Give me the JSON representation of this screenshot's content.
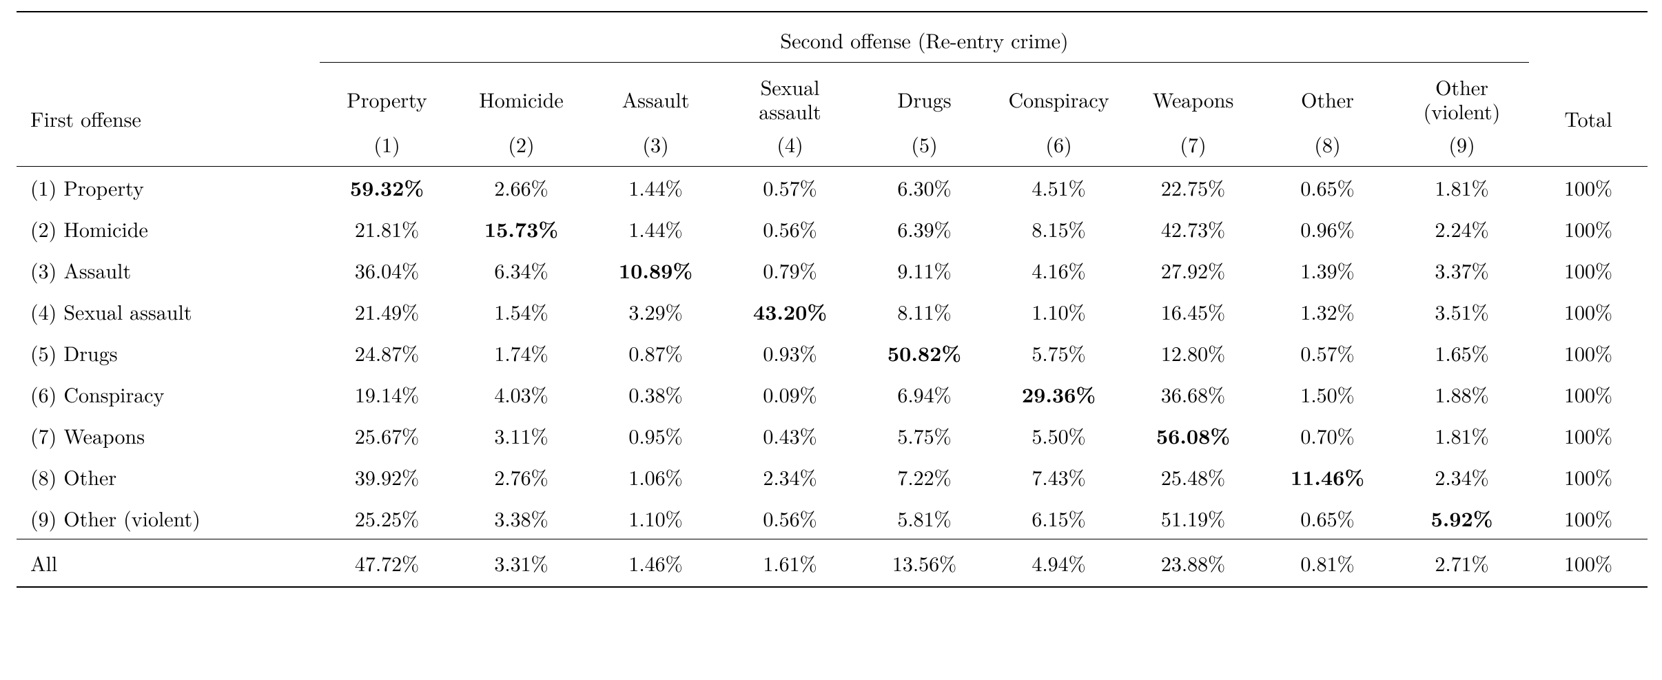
{
  "table": {
    "type": "table",
    "background_color": "#ffffff",
    "text_color": "#000000",
    "rule_color": "#000000",
    "font_family": "Latin Modern / Computer Modern serif",
    "header": {
      "row_label_title": "First offense",
      "spanner_title": "Second offense (Re-entry crime)",
      "total_title": "Total",
      "columns": [
        {
          "name_line1": "Property",
          "name_line2": "",
          "num": "(1)"
        },
        {
          "name_line1": "Homicide",
          "name_line2": "",
          "num": "(2)"
        },
        {
          "name_line1": "Assault",
          "name_line2": "",
          "num": "(3)"
        },
        {
          "name_line1": "Sexual",
          "name_line2": "assault",
          "num": "(4)"
        },
        {
          "name_line1": "Drugs",
          "name_line2": "",
          "num": "(5)"
        },
        {
          "name_line1": "Conspiracy",
          "name_line2": "",
          "num": "(6)"
        },
        {
          "name_line1": "Weapons",
          "name_line2": "",
          "num": "(7)"
        },
        {
          "name_line1": "Other",
          "name_line2": "",
          "num": "(8)"
        },
        {
          "name_line1": "Other",
          "name_line2": "(violent)",
          "num": "(9)"
        }
      ]
    },
    "rows": [
      {
        "label": "(1) Property",
        "cells": [
          "59.32%",
          "2.66%",
          "1.44%",
          "0.57%",
          "6.30%",
          "4.51%",
          "22.75%",
          "0.65%",
          "1.81%"
        ],
        "bold_index": 0,
        "total": "100%"
      },
      {
        "label": "(2) Homicide",
        "cells": [
          "21.81%",
          "15.73%",
          "1.44%",
          "0.56%",
          "6.39%",
          "8.15%",
          "42.73%",
          "0.96%",
          "2.24%"
        ],
        "bold_index": 1,
        "total": "100%"
      },
      {
        "label": "(3) Assault",
        "cells": [
          "36.04%",
          "6.34%",
          "10.89%",
          "0.79%",
          "9.11%",
          "4.16%",
          "27.92%",
          "1.39%",
          "3.37%"
        ],
        "bold_index": 2,
        "total": "100%"
      },
      {
        "label": "(4) Sexual assault",
        "cells": [
          "21.49%",
          "1.54%",
          "3.29%",
          "43.20%",
          "8.11%",
          "1.10%",
          "16.45%",
          "1.32%",
          "3.51%"
        ],
        "bold_index": 3,
        "total": "100%"
      },
      {
        "label": "(5) Drugs",
        "cells": [
          "24.87%",
          "1.74%",
          "0.87%",
          "0.93%",
          "50.82%",
          "5.75%",
          "12.80%",
          "0.57%",
          "1.65%"
        ],
        "bold_index": 4,
        "total": "100%"
      },
      {
        "label": "(6) Conspiracy",
        "cells": [
          "19.14%",
          "4.03%",
          "0.38%",
          "0.09%",
          "6.94%",
          "29.36%",
          "36.68%",
          "1.50%",
          "1.88%"
        ],
        "bold_index": 5,
        "total": "100%"
      },
      {
        "label": "(7) Weapons",
        "cells": [
          "25.67%",
          "3.11%",
          "0.95%",
          "0.43%",
          "5.75%",
          "5.50%",
          "56.08%",
          "0.70%",
          "1.81%"
        ],
        "bold_index": 6,
        "total": "100%"
      },
      {
        "label": "(8) Other",
        "cells": [
          "39.92%",
          "2.76%",
          "1.06%",
          "2.34%",
          "7.22%",
          "7.43%",
          "25.48%",
          "11.46%",
          "2.34%"
        ],
        "bold_index": 7,
        "total": "100%"
      },
      {
        "label": "(9) Other (violent)",
        "cells": [
          "25.25%",
          "3.38%",
          "1.10%",
          "0.56%",
          "5.81%",
          "6.15%",
          "51.19%",
          "0.65%",
          "5.92%"
        ],
        "bold_index": 8,
        "total": "100%"
      }
    ],
    "summary_row": {
      "label": "All",
      "cells": [
        "47.72%",
        "3.31%",
        "1.46%",
        "1.61%",
        "13.56%",
        "4.94%",
        "23.88%",
        "0.81%",
        "2.71%"
      ],
      "total": "100%"
    }
  }
}
